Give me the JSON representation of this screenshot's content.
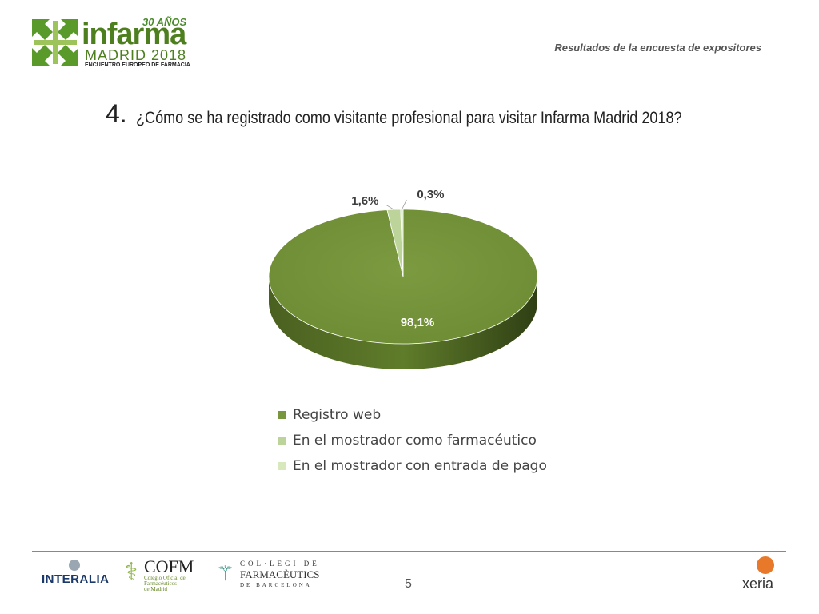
{
  "header": {
    "logo": {
      "years": "30 AÑOS",
      "word": "infarma",
      "city": "MADRID 2018",
      "tagline": "ENCUENTRO EUROPEO DE FARMACIA"
    },
    "subtitle": "Resultados de la encuesta de expositores"
  },
  "question": {
    "number": "4.",
    "text": "¿Cómo se ha registrado como visitante profesional para visitar Infarma Madrid 2018?"
  },
  "chart_data": {
    "type": "pie",
    "title": "",
    "labels": [
      "Registro web",
      "En el mostrador como farmacéutico",
      "En el mostrador con entrada de pago"
    ],
    "values": [
      98.1,
      1.6,
      0.3
    ],
    "value_labels": [
      "98,1%",
      "1,6%",
      "0,3%"
    ],
    "colors": [
      "#78963d",
      "#bcd49a",
      "#d6e8bc"
    ],
    "style": "3d",
    "legend_position": "bottom"
  },
  "footer": {
    "interalia": "INTERALIA",
    "cofm": {
      "title": "COFM",
      "sub1": "Colegio Oficial de",
      "sub2": "Farmacéuticos",
      "sub3": "de Madrid"
    },
    "colegi": {
      "line1": "COL·LEGI DE",
      "line2": "FARMACÈUTICS",
      "line3": "DE BARCELONA"
    },
    "page_number": "5",
    "xeria": "xeria"
  },
  "icons": {
    "logo_mark": "green-arrows-cross-icon",
    "interalia_mark": "interalia-sphere-icon",
    "cofm_mark": "pharmacy-cup-icon",
    "colegi_mark": "pharmacy-cross-icon",
    "xeria_mark": "xeria-x-icon"
  }
}
